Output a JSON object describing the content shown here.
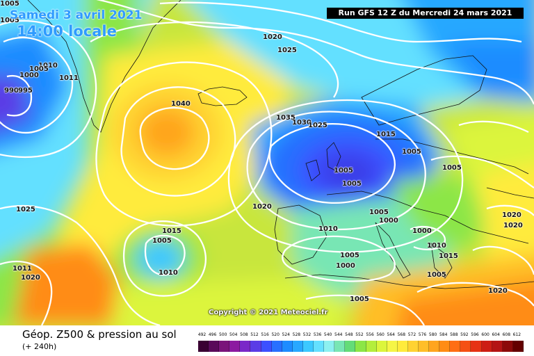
{
  "header": {
    "date": "Samedi 3 avril 2021",
    "time": "14:00 locale",
    "run_info": "Run GFS 12 Z du Mercredi 24 mars 2021"
  },
  "footer": {
    "title": "Géop. Z500 & pression au sol",
    "subtitle": "(+ 240h)"
  },
  "copyright": "Copyright © 2021 Meteociel.fr",
  "pressure_labels": [
    "1005",
    "1005",
    "1000",
    "1010",
    "1005",
    "1011",
    "990",
    "995",
    "1020",
    "1025",
    "1040",
    "1035",
    "1030",
    "1025",
    "1015",
    "1005",
    "1005",
    "1005",
    "1005",
    "1025",
    "1020",
    "1015",
    "1005",
    "1010",
    "1010",
    "1000",
    "1005",
    "1000",
    "1005",
    "1000",
    "1010",
    "1015",
    "1020",
    "1020",
    "1020",
    "1011",
    "1020",
    "1005",
    "1005"
  ],
  "legend": {
    "values": [
      "492",
      "496",
      "500",
      "504",
      "508",
      "512",
      "516",
      "520",
      "524",
      "528",
      "532",
      "536",
      "540",
      "544",
      "548",
      "552",
      "556",
      "560",
      "564",
      "568",
      "572",
      "576",
      "580",
      "584",
      "588",
      "592",
      "596",
      "600",
      "604",
      "608",
      "612"
    ],
    "colors": [
      "#3a0033",
      "#5a0a5a",
      "#7a147a",
      "#8c1aa0",
      "#7a28c8",
      "#5a3ce6",
      "#3c50ff",
      "#2870ff",
      "#1e8cff",
      "#28a8ff",
      "#3cc8ff",
      "#64e0ff",
      "#8cf0f0",
      "#78e6b4",
      "#64dc78",
      "#8ce646",
      "#b4ee3c",
      "#dcf53c",
      "#f5f546",
      "#ffeb3c",
      "#ffd232",
      "#ffbe28",
      "#ffa51e",
      "#ff8c14",
      "#ff6e14",
      "#f55014",
      "#e63214",
      "#cd1e14",
      "#b41414",
      "#8c0a0a",
      "#640000"
    ]
  }
}
